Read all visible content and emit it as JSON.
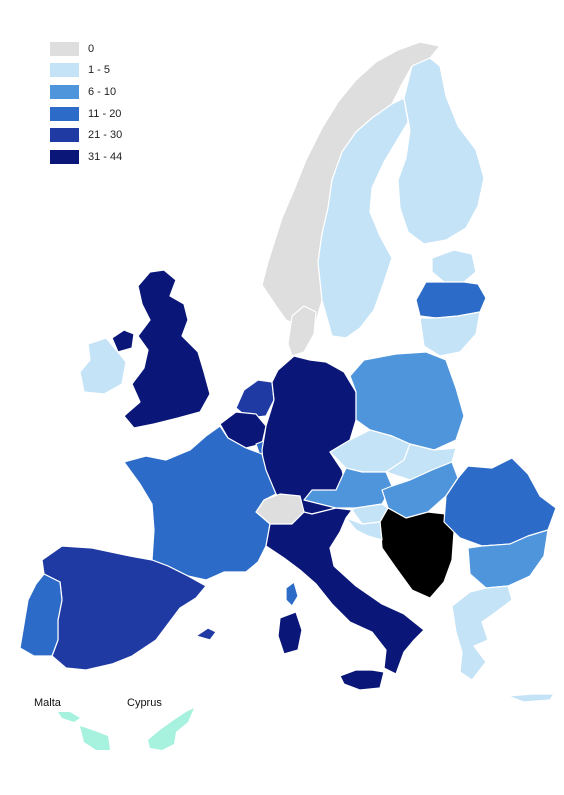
{
  "legend": [
    {
      "label": "0",
      "color": "#dedede"
    },
    {
      "label": "1 - 5",
      "color": "#c4e3f7"
    },
    {
      "label": "6 - 10",
      "color": "#4f95dc"
    },
    {
      "label": "11 - 20",
      "color": "#2c6cc8"
    },
    {
      "label": "21 - 30",
      "color": "#1f3aa3"
    },
    {
      "label": "31 - 44",
      "color": "#0a1778"
    }
  ],
  "insets": {
    "malta": "Malta",
    "cyprus": "Cyprus"
  },
  "colors": {
    "inset_islands": "#a6f2de",
    "no_data": "#dedede"
  },
  "countries": [
    {
      "id": "norway",
      "class": 0
    },
    {
      "id": "sweden",
      "class": 1
    },
    {
      "id": "finland",
      "class": 1
    },
    {
      "id": "estonia",
      "class": 1
    },
    {
      "id": "latvia",
      "class": 3
    },
    {
      "id": "lithuania",
      "class": 1
    },
    {
      "id": "uk",
      "class": 5
    },
    {
      "id": "ireland",
      "class": 1
    },
    {
      "id": "netherlands",
      "class": 4
    },
    {
      "id": "belgium",
      "class": 5
    },
    {
      "id": "luxembourg",
      "class": 3
    },
    {
      "id": "germany",
      "class": 5
    },
    {
      "id": "denmark",
      "class": 0
    },
    {
      "id": "poland",
      "class": 2
    },
    {
      "id": "czechia",
      "class": 1
    },
    {
      "id": "slovakia",
      "class": 1
    },
    {
      "id": "austria",
      "class": 2
    },
    {
      "id": "hungary",
      "class": 2
    },
    {
      "id": "slovenia",
      "class": 1
    },
    {
      "id": "croatia",
      "class": 1
    },
    {
      "id": "balkans",
      "class": 0
    },
    {
      "id": "switzerland",
      "class": 0
    },
    {
      "id": "france",
      "class": 3
    },
    {
      "id": "corsica",
      "class": 3
    },
    {
      "id": "spain",
      "class": 4
    },
    {
      "id": "balearic",
      "class": 4
    },
    {
      "id": "portugal",
      "class": 3
    },
    {
      "id": "italy",
      "class": 5
    },
    {
      "id": "sardinia",
      "class": 5
    },
    {
      "id": "sicily",
      "class": 5
    },
    {
      "id": "romania",
      "class": 3
    },
    {
      "id": "bulgaria",
      "class": 2
    },
    {
      "id": "greece",
      "class": 1
    },
    {
      "id": "crete",
      "class": 1
    }
  ]
}
